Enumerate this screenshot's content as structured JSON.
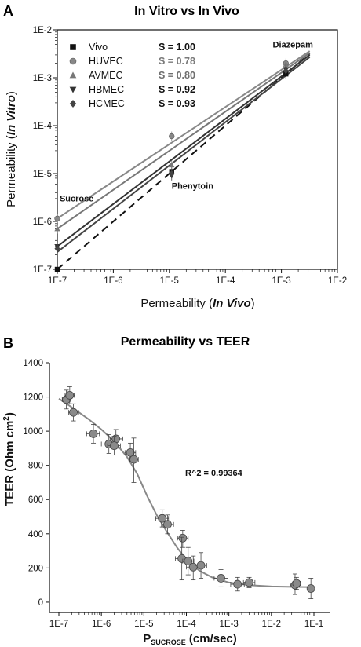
{
  "panel_letters": [
    "A",
    "B"
  ],
  "chart_data": [
    {
      "type": "scatter",
      "title": "In Vitro vs In Vivo",
      "xlabel_prefix": "Permeability (",
      "xlabel_em": "In Vivo",
      "xlabel_suffix": ")",
      "ylabel_prefix": "Permeability (",
      "ylabel_em": "In Vitro",
      "ylabel_suffix": ")",
      "x_scale": "log",
      "y_scale": "log",
      "xlim": [
        1e-07,
        0.01
      ],
      "ylim": [
        1e-07,
        0.01
      ],
      "x_tick_values": [
        1e-07,
        1e-06,
        1e-05,
        0.0001,
        0.001,
        0.01
      ],
      "x_tick_labels": [
        "1E-7",
        "1E-6",
        "1E-5",
        "1E-4",
        "1E-3",
        "1E-2"
      ],
      "y_tick_values": [
        1e-07,
        1e-06,
        1e-05,
        0.0001,
        0.001,
        0.01
      ],
      "y_tick_labels": [
        "1E-7",
        "1E-6",
        "1E-5",
        "1E-4",
        "1E-3",
        "1E-2"
      ],
      "grid": false,
      "legend_position": "top-left",
      "x": [
        1e-07,
        1.1e-05,
        0.0012
      ],
      "series": [
        {
          "name": "Vivo",
          "s_label": "S = 1.00",
          "marker": "square",
          "color": "#111111",
          "s_color": "#111111",
          "values": [
            1e-07,
            1.1e-05,
            0.0012
          ],
          "fit": [
            [
              1e-07,
              1e-07
            ],
            [
              0.0032,
              0.0032
            ]
          ],
          "fit_style": "dashed"
        },
        {
          "name": "HUVEC",
          "s_label": "S = 0.78",
          "marker": "circle",
          "color": "#888888",
          "s_color": "#7a7a7a",
          "values": [
            1.15e-06,
            6e-05,
            0.002
          ],
          "fit": [
            [
              1e-07,
              1.15e-06
            ],
            [
              0.0032,
              0.0036
            ]
          ],
          "fit_style": "solid"
        },
        {
          "name": "AVMEC",
          "s_label": "S = 0.80",
          "marker": "triangle-up",
          "color": "#777777",
          "s_color": "#6e6e6e",
          "values": [
            7e-07,
            1.5e-05,
            0.0019
          ],
          "fit": [
            [
              1e-07,
              7e-07
            ],
            [
              0.0032,
              0.0033
            ]
          ],
          "fit_style": "solid"
        },
        {
          "name": "HBMEC",
          "s_label": "S = 0.92",
          "marker": "triangle-down",
          "color": "#333333",
          "s_color": "#111111",
          "values": [
            3e-07,
            9e-06,
            0.0015
          ],
          "fit": [
            [
              1e-07,
              3e-07
            ],
            [
              0.0032,
              0.003
            ]
          ],
          "fit_style": "solid"
        },
        {
          "name": "HCMEC",
          "s_label": "S = 0.93",
          "marker": "diamond",
          "color": "#444444",
          "s_color": "#111111",
          "values": [
            2.7e-07,
            1e-05,
            0.0014
          ],
          "fit": [
            [
              1e-07,
              2.3e-07
            ],
            [
              0.0032,
              0.0027
            ]
          ],
          "fit_style": "solid"
        }
      ],
      "annotations": [
        {
          "text": "Sucrose",
          "x": 1.1e-07,
          "y": 2.6e-06
        },
        {
          "text": "Phenytoin",
          "x": 1.1e-05,
          "y": 4.8e-06
        },
        {
          "text": "Diazepam",
          "x": 0.0007,
          "y": 0.0043
        }
      ]
    },
    {
      "type": "scatter",
      "title": "Permeability vs TEER",
      "xlabel_main": "P",
      "xlabel_sub": "SUCROSE",
      "xlabel_unit": " (cm/sec)",
      "ylabel_main": "TEER (Ohm cm",
      "ylabel_sup": "2",
      "ylabel_end": ")",
      "x_scale": "log",
      "y_scale": "linear",
      "xlim": [
        1e-07,
        0.1
      ],
      "ylim": [
        -60,
        1400
      ],
      "x_tick_values": [
        1e-07,
        1e-06,
        1e-05,
        0.0001,
        0.001,
        0.01,
        0.1
      ],
      "x_tick_labels": [
        "1E-7",
        "1E-6",
        "1E-5",
        "1E-4",
        "1E-3",
        "1E-2",
        "1E-1"
      ],
      "y_tick_values": [
        0,
        200,
        400,
        600,
        800,
        1000,
        1200,
        1400
      ],
      "y_tick_labels": [
        "0",
        "200",
        "400",
        "600",
        "800",
        "1000",
        "1200",
        "1400"
      ],
      "grid": false,
      "annotation": "R^2 = 0.99364",
      "points": [
        {
          "x": 1.5e-07,
          "y": 1185,
          "xerr": [
            1.2e-07,
            1.9e-07
          ],
          "yerr": [
            1130,
            1240
          ]
        },
        {
          "x": 1.8e-07,
          "y": 1210,
          "xerr": [
            1.4e-07,
            2.3e-07
          ],
          "yerr": [
            1160,
            1260
          ]
        },
        {
          "x": 2.2e-07,
          "y": 1110,
          "xerr": [
            1.7e-07,
            2.9e-07
          ],
          "yerr": [
            1060,
            1160
          ]
        },
        {
          "x": 6.5e-07,
          "y": 985,
          "xerr": [
            4.5e-07,
            9e-07
          ],
          "yerr": [
            930,
            1040
          ]
        },
        {
          "x": 1.5e-06,
          "y": 925,
          "xerr": [
            1e-06,
            2.2e-06
          ],
          "yerr": [
            870,
            980
          ]
        },
        {
          "x": 2.2e-06,
          "y": 955,
          "xerr": [
            1.6e-06,
            3.2e-06
          ],
          "yerr": [
            900,
            1010
          ]
        },
        {
          "x": 2e-06,
          "y": 915,
          "xerr": [
            1.4e-06,
            2.8e-06
          ],
          "yerr": [
            860,
            970
          ]
        },
        {
          "x": 4.8e-06,
          "y": 875,
          "xerr": [
            3.6e-06,
            6.4e-06
          ],
          "yerr": [
            820,
            930
          ]
        },
        {
          "x": 5.8e-06,
          "y": 835,
          "xerr": [
            4.6e-06,
            7.4e-06
          ],
          "yerr": [
            700,
            960
          ]
        },
        {
          "x": 2.7e-05,
          "y": 490,
          "xerr": [
            1.9e-05,
            3.8e-05
          ],
          "yerr": [
            440,
            540
          ]
        },
        {
          "x": 3.6e-05,
          "y": 455,
          "xerr": [
            2.6e-05,
            5e-05
          ],
          "yerr": [
            400,
            510
          ]
        },
        {
          "x": 8.2e-05,
          "y": 375,
          "xerr": [
            6.2e-05,
            0.00011
          ],
          "yerr": [
            320,
            420
          ]
        },
        {
          "x": 7.8e-05,
          "y": 255,
          "xerr": [
            5.5e-05,
            0.00011
          ],
          "yerr": [
            130,
            380
          ]
        },
        {
          "x": 0.00011,
          "y": 240,
          "xerr": [
            8.2e-05,
            0.00015
          ],
          "yerr": [
            160,
            320
          ]
        },
        {
          "x": 0.000145,
          "y": 205,
          "xerr": [
            0.0001,
            0.00021
          ],
          "yerr": [
            130,
            270
          ]
        },
        {
          "x": 0.00022,
          "y": 215,
          "xerr": [
            0.00016,
            0.0003
          ],
          "yerr": [
            140,
            290
          ]
        },
        {
          "x": 0.00065,
          "y": 140,
          "xerr": [
            0.00045,
            0.00095
          ],
          "yerr": [
            90,
            190
          ]
        },
        {
          "x": 0.0016,
          "y": 105,
          "xerr": [
            0.0011,
            0.0023
          ],
          "yerr": [
            65,
            145
          ]
        },
        {
          "x": 0.003,
          "y": 115,
          "xerr": [
            0.0022,
            0.0041
          ],
          "yerr": [
            85,
            145
          ]
        },
        {
          "x": 0.036,
          "y": 100,
          "xerr": [
            0.028,
            0.046
          ],
          "yerr": [
            45,
            165
          ]
        },
        {
          "x": 0.039,
          "y": 110,
          "xerr": [
            0.032,
            0.048
          ],
          "yerr": [
            75,
            145
          ]
        },
        {
          "x": 0.085,
          "y": 80,
          "xerr": [
            0.07,
            0.1
          ],
          "yerr": [
            20,
            140
          ]
        }
      ],
      "fit_curve": [
        [
          1e-07,
          1190
        ],
        [
          2e-07,
          1140
        ],
        [
          5e-07,
          1070
        ],
        [
          1e-06,
          1010
        ],
        [
          2e-06,
          940
        ],
        [
          4e-06,
          850
        ],
        [
          7e-06,
          750
        ],
        [
          1.2e-05,
          620
        ],
        [
          2e-05,
          510
        ],
        [
          3.5e-05,
          410
        ],
        [
          6e-05,
          320
        ],
        [
          0.0001,
          250
        ],
        [
          0.0002,
          185
        ],
        [
          0.0004,
          145
        ],
        [
          0.001,
          115
        ],
        [
          0.003,
          100
        ],
        [
          0.01,
          92
        ],
        [
          0.04,
          89
        ],
        [
          0.1,
          88
        ]
      ]
    }
  ]
}
